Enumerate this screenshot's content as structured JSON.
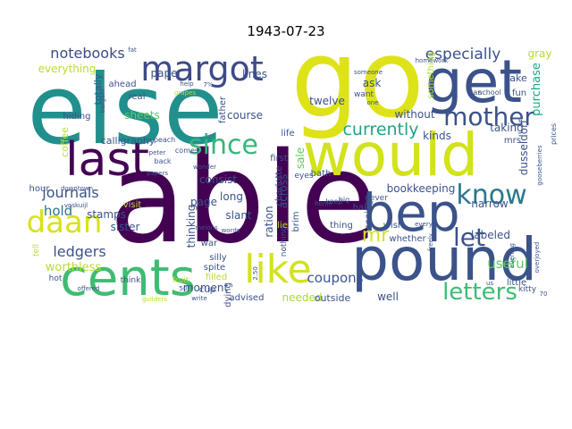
{
  "title": "1943-07-23",
  "words": [
    {
      "text": "able",
      "color": "#440154"
    },
    {
      "text": "go",
      "color": "#dde318"
    },
    {
      "text": "else",
      "color": "#21908d"
    },
    {
      "text": "would",
      "color": "#d2e21b"
    },
    {
      "text": "pound",
      "color": "#3b528b"
    },
    {
      "text": "cents",
      "color": "#3fbc73"
    },
    {
      "text": "get",
      "color": "#3b528b"
    },
    {
      "text": "last",
      "color": "#440154"
    },
    {
      "text": "bep",
      "color": "#3b528b"
    },
    {
      "text": "margot",
      "color": "#3e4a89"
    },
    {
      "text": "like",
      "color": "#d2e21b"
    },
    {
      "text": "mother",
      "color": "#3b528b"
    },
    {
      "text": "daan",
      "color": "#d8e219"
    },
    {
      "text": "since",
      "color": "#35b779"
    },
    {
      "text": "know",
      "color": "#2a788e"
    },
    {
      "text": "letters",
      "color": "#3fbc73"
    },
    {
      "text": "let",
      "color": "#3b528b"
    },
    {
      "text": "mr",
      "color": "#d2e21b"
    },
    {
      "text": "currently",
      "color": "#20a486"
    },
    {
      "text": "especially",
      "color": "#3b528b"
    },
    {
      "text": "notebooks",
      "color": "#3e4a89"
    },
    {
      "text": "journals",
      "color": "#3b528b"
    },
    {
      "text": "ledgers",
      "color": "#3b528b"
    },
    {
      "text": "hold",
      "color": "#2c728e"
    },
    {
      "text": "useful",
      "color": "#5ec962"
    },
    {
      "text": "coupons",
      "color": "#3b528b"
    },
    {
      "text": "bookkeeping",
      "color": "#3b528b"
    },
    {
      "text": "needed",
      "color": "#a8db34"
    },
    {
      "text": "well",
      "color": "#3b528b"
    },
    {
      "text": "worthless",
      "color": "#b5de2b"
    },
    {
      "text": "stamps",
      "color": "#3b528b"
    },
    {
      "text": "sister",
      "color": "#3b528b"
    },
    {
      "text": "paper",
      "color": "#3b528b"
    },
    {
      "text": "lines",
      "color": "#3b528b"
    },
    {
      "text": "course",
      "color": "#3b528b"
    },
    {
      "text": "twelve",
      "color": "#3b528b"
    },
    {
      "text": "ask",
      "color": "#3b528b"
    },
    {
      "text": "without",
      "color": "#3b528b"
    },
    {
      "text": "kinds",
      "color": "#3b528b"
    },
    {
      "text": "taking",
      "color": "#3b528b"
    },
    {
      "text": "narrow",
      "color": "#3b528b"
    },
    {
      "text": "labeled",
      "color": "#3b528b"
    },
    {
      "text": "purchase",
      "color": "#20a486"
    },
    {
      "text": "gray",
      "color": "#b5de2b"
    },
    {
      "text": "cake",
      "color": "#3b528b"
    },
    {
      "text": "everything",
      "color": "#b5de2b"
    },
    {
      "text": "sheets",
      "color": "#5ec962"
    },
    {
      "text": "calligraphy",
      "color": "#3b528b"
    },
    {
      "text": "consist",
      "color": "#3b528b"
    },
    {
      "text": "long",
      "color": "#3b528b"
    },
    {
      "text": "page",
      "color": "#3b528b"
    },
    {
      "text": "slant",
      "color": "#3b528b"
    },
    {
      "text": "thinking",
      "color": "#3b528b"
    },
    {
      "text": "moment",
      "color": "#3b528b"
    },
    {
      "text": "ration",
      "color": "#3b528b"
    },
    {
      "text": "across",
      "color": "#3b528b"
    },
    {
      "text": "sale",
      "color": "#5ec962"
    },
    {
      "text": "outside",
      "color": "#3b528b"
    },
    {
      "text": "advised",
      "color": "#3b528b"
    },
    {
      "text": "dusseldorf",
      "color": "#3b528b"
    },
    {
      "text": "mrs.",
      "color": "#3b528b"
    },
    {
      "text": "totally",
      "color": "#3b528b"
    },
    {
      "text": "ahead",
      "color": "#3b528b"
    },
    {
      "text": "real",
      "color": "#3b528b"
    },
    {
      "text": "hiding",
      "color": "#3b528b"
    },
    {
      "text": "coffee",
      "color": "#b5de2b"
    },
    {
      "text": "hour",
      "color": "#3b528b"
    },
    {
      "text": "visit",
      "color": "#b5de2b"
    },
    {
      "text": "silly",
      "color": "#3b528b"
    },
    {
      "text": "spite",
      "color": "#3b528b"
    },
    {
      "text": "filled",
      "color": "#b5de2b"
    },
    {
      "text": "cup",
      "color": "#3b528b"
    },
    {
      "text": "war",
      "color": "#3b528b"
    },
    {
      "text": "dying",
      "color": "#3b528b"
    },
    {
      "text": "think",
      "color": "#3b528b"
    },
    {
      "text": "hot",
      "color": "#3b528b"
    },
    {
      "text": "fruit",
      "color": "#b5de2b"
    },
    {
      "text": "first",
      "color": "#3b528b"
    },
    {
      "text": "life",
      "color": "#3b528b"
    },
    {
      "text": "bath",
      "color": "#3b528b"
    },
    {
      "text": "half",
      "color": "#3b528b"
    },
    {
      "text": "wish",
      "color": "#3b528b"
    },
    {
      "text": "whether",
      "color": "#3b528b"
    },
    {
      "text": "little",
      "color": "#3b528b"
    },
    {
      "text": "thing",
      "color": "#3b528b"
    },
    {
      "text": "seeing",
      "color": "#3b528b"
    },
    {
      "text": "never",
      "color": "#3b528b"
    },
    {
      "text": "nothing",
      "color": "#3b528b"
    },
    {
      "text": "brim",
      "color": "#3b528b"
    },
    {
      "text": "lie",
      "color": "#b5de2b"
    },
    {
      "text": "charlotte",
      "color": "#3b528b"
    },
    {
      "text": "eyes",
      "color": "#3b528b"
    },
    {
      "text": "keep",
      "color": "#3b528b"
    },
    {
      "text": "fun",
      "color": "#3b528b"
    },
    {
      "text": "school",
      "color": "#3b528b"
    },
    {
      "text": "something",
      "color": "#b5de2b"
    },
    {
      "text": "want",
      "color": "#3b528b"
    },
    {
      "text": "one",
      "color": "#3b528b"
    },
    {
      "text": "someone",
      "color": "#3b528b"
    },
    {
      "text": "kitty",
      "color": "#3b528b"
    },
    {
      "text": "father",
      "color": "#3b528b"
    },
    {
      "text": "comes",
      "color": "#3b528b"
    },
    {
      "text": "back",
      "color": "#3b528b"
    },
    {
      "text": "peach",
      "color": "#3b528b"
    },
    {
      "text": "wonder",
      "color": "#3b528b"
    },
    {
      "text": "melons",
      "color": "#3b528b"
    },
    {
      "text": "words",
      "color": "#3b528b"
    },
    {
      "text": "downtown",
      "color": "#3b528b"
    },
    {
      "text": "voskuijl",
      "color": "#3b528b"
    },
    {
      "text": "tell",
      "color": "#b5de2b"
    },
    {
      "text": "write",
      "color": "#3b528b"
    },
    {
      "text": "guilders",
      "color": "#b5de2b"
    },
    {
      "text": "offered",
      "color": "#3b528b"
    },
    {
      "text": "fat",
      "color": "#3b528b"
    },
    {
      "text": "help",
      "color": "#3b528b"
    },
    {
      "text": "7%",
      "color": "#3b528b"
    },
    {
      "text": "bargain",
      "color": "#3b528b"
    },
    {
      "text": "prices",
      "color": "#3b528b"
    },
    {
      "text": "gooseberries",
      "color": "#3b528b"
    },
    {
      "text": "overjoyed",
      "color": "#3b528b"
    },
    {
      "text": "so-called",
      "color": "#3b528b"
    },
    {
      "text": "homework",
      "color": "#3b528b"
    },
    {
      "text": "home",
      "color": "#3b528b"
    },
    {
      "text": "us",
      "color": "#3b528b"
    },
    {
      "text": "big",
      "color": "#3b528b"
    },
    {
      "text": "every",
      "color": "#3b528b"
    },
    {
      "text": "freely",
      "color": "#3b528b"
    },
    {
      "text": "70",
      "color": "#3b528b"
    },
    {
      "text": "2.50",
      "color": "#3b528b"
    },
    {
      "text": "50",
      "color": "#3b528b"
    },
    {
      "text": "van",
      "color": "#3b528b"
    },
    {
      "text": "papers",
      "color": "#3b528b"
    },
    {
      "text": "peter",
      "color": "#3b528b"
    },
    {
      "text": "evening",
      "color": "#3b528b"
    },
    {
      "text": "grapes",
      "color": "#b5de2b"
    }
  ]
}
